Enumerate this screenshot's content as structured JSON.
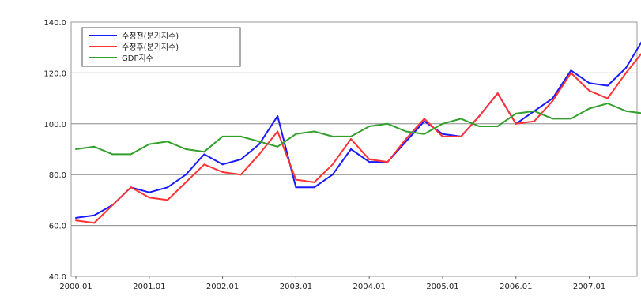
{
  "chart_data": {
    "type": "line",
    "title": "",
    "xlabel": "",
    "ylabel": "",
    "ylim": [
      40,
      140
    ],
    "yticks": [
      "40.0",
      "60.0",
      "80.0",
      "100.0",
      "120.0",
      "140.0"
    ],
    "ytick_values": [
      40,
      60,
      80,
      100,
      120,
      140
    ],
    "xticks": [
      "2000.01",
      "2001.01",
      "2002.01",
      "2003.01",
      "2004.01",
      "2005.01",
      "2006.01",
      "2007.01"
    ],
    "grid": "horizontal",
    "legend_position": "top-left",
    "x": [
      "2000.01",
      "2000.02",
      "2000.03",
      "2000.04",
      "2001.01",
      "2001.02",
      "2001.03",
      "2001.04",
      "2002.01",
      "2002.02",
      "2002.03",
      "2002.04",
      "2003.01",
      "2003.02",
      "2003.03",
      "2003.04",
      "2004.01",
      "2004.02",
      "2004.03",
      "2004.04",
      "2005.01",
      "2005.02",
      "2005.03",
      "2005.04",
      "2006.01",
      "2006.02",
      "2006.03",
      "2006.04",
      "2007.01",
      "2007.02",
      "2007.03",
      "2007.04"
    ],
    "series": [
      {
        "name": "수정전(분기지수)",
        "color": "#1a1aff",
        "values": [
          63,
          64,
          68,
          75,
          73,
          75,
          80,
          88,
          84,
          86,
          92,
          103,
          75,
          75,
          80,
          90,
          85,
          85,
          93,
          101,
          96,
          95,
          103,
          112,
          100,
          105,
          110,
          121,
          116,
          115,
          122,
          134
        ]
      },
      {
        "name": "수정후(분기지수)",
        "color": "#ff3333",
        "values": [
          62,
          61,
          68,
          75,
          71,
          70,
          77,
          84,
          81,
          80,
          88,
          97,
          78,
          77,
          84,
          94,
          86,
          85,
          94,
          102,
          95,
          95,
          103,
          112,
          100,
          101,
          109,
          120,
          113,
          110,
          120,
          129
        ]
      },
      {
        "name": "GDP지수",
        "color": "#33a02c",
        "values": [
          90,
          91,
          88,
          88,
          92,
          93,
          90,
          89,
          95,
          95,
          93,
          91,
          96,
          97,
          95,
          95,
          99,
          100,
          97,
          96,
          100,
          102,
          99,
          99,
          104,
          105,
          102,
          102,
          106,
          108,
          105,
          104
        ]
      }
    ]
  }
}
